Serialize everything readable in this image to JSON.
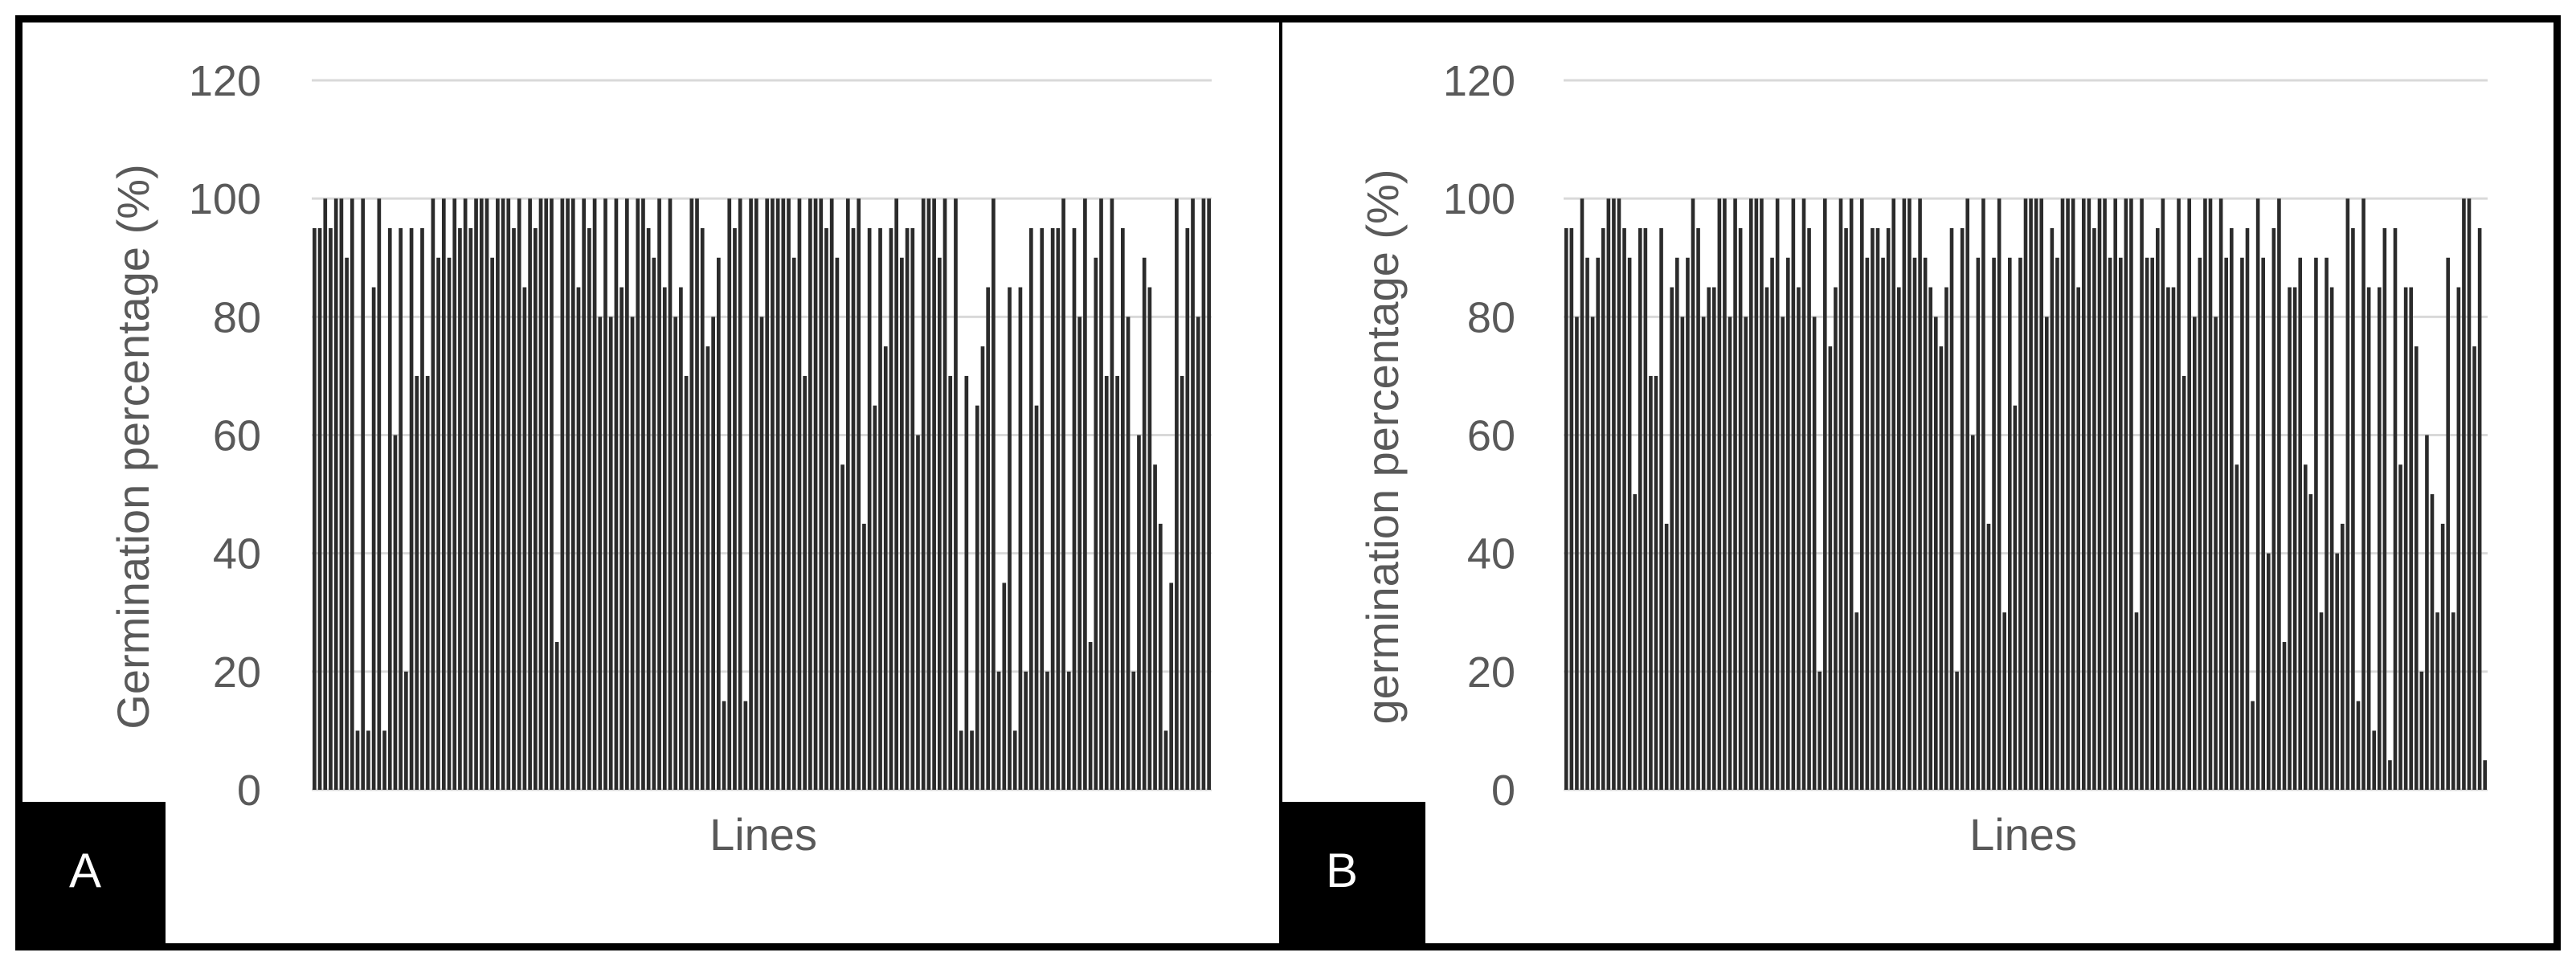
{
  "colors": {
    "bar": "#2b2b2b",
    "grid": "#d9d9d9",
    "axis_text": "#595959",
    "frame": "#000000",
    "panel_label_bg": "#000000",
    "panel_label_text": "#ffffff"
  },
  "chart_data": [
    {
      "type": "bar",
      "panel_label": "A",
      "xlabel": "Lines",
      "ylabel": "Germination percentage (%)",
      "ylim": [
        0,
        120
      ],
      "yticks": [
        0,
        20,
        40,
        60,
        80,
        100,
        120
      ],
      "grid": true,
      "legend": "none",
      "values": [
        95,
        95,
        100,
        95,
        100,
        100,
        90,
        100,
        10,
        100,
        10,
        85,
        100,
        10,
        95,
        60,
        95,
        20,
        95,
        70,
        95,
        70,
        100,
        90,
        100,
        90,
        100,
        95,
        100,
        95,
        100,
        100,
        100,
        90,
        100,
        100,
        100,
        95,
        100,
        85,
        100,
        95,
        100,
        100,
        100,
        25,
        100,
        100,
        100,
        85,
        100,
        95,
        100,
        80,
        100,
        80,
        100,
        85,
        100,
        80,
        100,
        100,
        95,
        90,
        100,
        85,
        100,
        80,
        85,
        70,
        100,
        100,
        95,
        75,
        80,
        90,
        15,
        100,
        95,
        100,
        15,
        100,
        100,
        80,
        100,
        100,
        100,
        100,
        100,
        90,
        100,
        70,
        100,
        100,
        100,
        95,
        100,
        90,
        55,
        100,
        95,
        100,
        45,
        95,
        65,
        95,
        75,
        95,
        100,
        90,
        95,
        95,
        60,
        100,
        100,
        100,
        90,
        100,
        70,
        100,
        10,
        70,
        10,
        65,
        75,
        85,
        100,
        20,
        35,
        85,
        10,
        85,
        20,
        95,
        65,
        95,
        20,
        95,
        95,
        100,
        20,
        95,
        80,
        100,
        25,
        90,
        100,
        70,
        100,
        70,
        95,
        80,
        20,
        60,
        90,
        85,
        55,
        45,
        10,
        35,
        100,
        70,
        95,
        100,
        80,
        100,
        100
      ]
    },
    {
      "type": "bar",
      "panel_label": "B",
      "xlabel": "Lines",
      "ylabel": "germination percentage (%)",
      "ylim": [
        0,
        120
      ],
      "yticks": [
        0,
        20,
        40,
        60,
        80,
        100,
        120
      ],
      "grid": true,
      "legend": "none",
      "values": [
        95,
        95,
        80,
        100,
        90,
        80,
        90,
        95,
        100,
        100,
        100,
        95,
        90,
        50,
        95,
        95,
        70,
        70,
        95,
        45,
        85,
        90,
        80,
        90,
        100,
        95,
        80,
        85,
        85,
        100,
        100,
        80,
        100,
        95,
        80,
        100,
        100,
        100,
        85,
        90,
        100,
        80,
        90,
        100,
        85,
        100,
        95,
        80,
        20,
        100,
        75,
        85,
        100,
        95,
        100,
        30,
        100,
        90,
        95,
        95,
        90,
        95,
        100,
        85,
        100,
        100,
        90,
        100,
        90,
        85,
        80,
        75,
        85,
        95,
        20,
        95,
        100,
        60,
        90,
        100,
        45,
        90,
        100,
        30,
        90,
        65,
        90,
        100,
        100,
        100,
        100,
        80,
        95,
        90,
        100,
        100,
        100,
        85,
        100,
        100,
        95,
        100,
        100,
        90,
        100,
        90,
        100,
        100,
        30,
        100,
        90,
        90,
        95,
        100,
        85,
        85,
        100,
        70,
        100,
        80,
        90,
        100,
        100,
        80,
        100,
        90,
        95,
        55,
        90,
        95,
        15,
        100,
        90,
        40,
        95,
        100,
        25,
        85,
        85,
        90,
        55,
        50,
        90,
        30,
        90,
        85,
        40,
        45,
        100,
        95,
        15,
        100,
        85,
        10,
        85,
        95,
        5,
        95,
        55,
        85,
        85,
        75,
        20,
        60,
        50,
        30,
        45,
        90,
        30,
        85,
        100,
        100,
        75,
        95,
        5
      ]
    }
  ]
}
